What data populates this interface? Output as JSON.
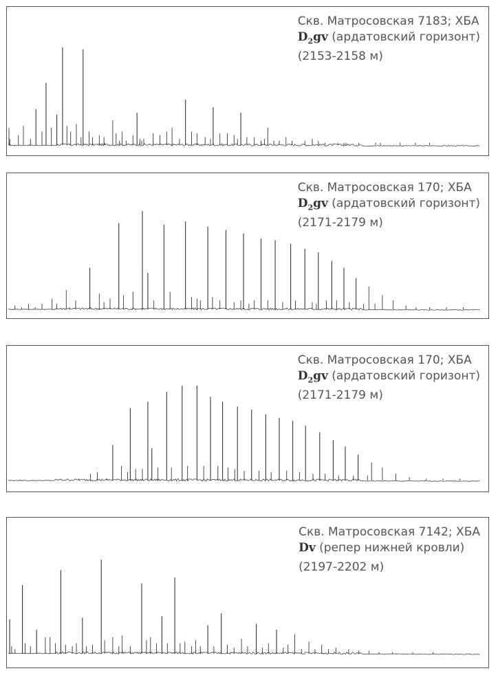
{
  "chart_data": [
    {
      "type": "line",
      "well": "Скв. Матросовская 7183; ХБА",
      "stratum": "D",
      "stratum_sub": "2",
      "stratum_suffix": "gv",
      "horizon": "(ардатовский горизонт)",
      "depth": "(2153-2158 м)",
      "peaks": [
        [
          0.1,
          0.5
        ],
        [
          0.15,
          0.1
        ],
        [
          0.22,
          0.2
        ],
        [
          0.38,
          0.05
        ],
        [
          0.98,
          0.01
        ],
        [
          1.5,
          0.3
        ],
        [
          2.25,
          0.55
        ],
        [
          3.3,
          0.2
        ],
        [
          3.1,
          0.05
        ],
        [
          4.1,
          1.0
        ],
        [
          5.0,
          0.4
        ],
        [
          5.6,
          1.7
        ],
        [
          6.4,
          0.5
        ],
        [
          7.2,
          0.85
        ],
        [
          8.05,
          2.65
        ],
        [
          8.7,
          0.55
        ],
        [
          9.25,
          0.4
        ],
        [
          10.1,
          0.6
        ],
        [
          10.8,
          0.25
        ],
        [
          11.1,
          2.6
        ],
        [
          12.0,
          0.4
        ],
        [
          12.5,
          0.25
        ],
        [
          13.5,
          0.3
        ],
        [
          14.2,
          0.25
        ],
        [
          14.3,
          0.1
        ],
        [
          15.5,
          0.7
        ],
        [
          16.0,
          0.35
        ],
        [
          16.5,
          0.15
        ],
        [
          16.9,
          0.4
        ],
        [
          17.5,
          0.15
        ],
        [
          18.5,
          0.3
        ],
        [
          19.1,
          0.9
        ],
        [
          19.55,
          0.2
        ],
        [
          19.8,
          0.15
        ],
        [
          20.1,
          0.2
        ],
        [
          21.5,
          0.35
        ],
        [
          22.5,
          0.3
        ],
        [
          23.5,
          0.4
        ],
        [
          24.3,
          0.5
        ],
        [
          25.4,
          0.2
        ],
        [
          26.3,
          1.25
        ],
        [
          27.2,
          0.4
        ],
        [
          28.0,
          0.35
        ],
        [
          29.2,
          0.25
        ],
        [
          30.0,
          0.2
        ],
        [
          30.4,
          1.05
        ],
        [
          31.4,
          0.35
        ],
        [
          32.5,
          0.35
        ],
        [
          33.5,
          0.3
        ],
        [
          34.0,
          0.2
        ],
        [
          34.5,
          0.9
        ],
        [
          35.4,
          0.25
        ],
        [
          36.5,
          0.25
        ],
        [
          37.5,
          0.15
        ],
        [
          38.0,
          0.2
        ],
        [
          38.5,
          0.5
        ],
        [
          39.4,
          0.15
        ],
        [
          40.2,
          0.15
        ],
        [
          41.2,
          0.25
        ],
        [
          42.1,
          0.15
        ],
        [
          44.0,
          0.15
        ],
        [
          45.1,
          0.2
        ],
        [
          46.0,
          0.15
        ],
        [
          47.0,
          0.1
        ],
        [
          48.9,
          0.1
        ],
        [
          49.8,
          0.1
        ],
        [
          50.1,
          0.1
        ],
        [
          52.0,
          0.1
        ],
        [
          54.5,
          0.1
        ],
        [
          55.2,
          0.1
        ],
        [
          58.1,
          0.1
        ],
        [
          60.4,
          0.1
        ],
        [
          62.5,
          0.1
        ],
        [
          65.3,
          0.05
        ],
        [
          67.5,
          0.05
        ]
      ],
      "baseline": 0.1,
      "xlim": [
        0,
        70
      ],
      "ylim": [
        0,
        3
      ]
    },
    {
      "type": "line",
      "well": "Скв. Матросовская 170; ХБА",
      "stratum": "D",
      "stratum_sub": "2",
      "stratum_suffix": "gv",
      "horizon": "(ардатовский горизонт)",
      "depth": "(2171-2179 м)",
      "peaks": [
        [
          1.0,
          0.15
        ],
        [
          2.0,
          0.1
        ],
        [
          3.0,
          0.2
        ],
        [
          4.0,
          0.1
        ],
        [
          5.0,
          0.2
        ],
        [
          6.5,
          0.35
        ],
        [
          7.2,
          0.2
        ],
        [
          8.6,
          0.6
        ],
        [
          9.1,
          0.1
        ],
        [
          10.0,
          0.3
        ],
        [
          12.1,
          1.25
        ],
        [
          13.5,
          0.5
        ],
        [
          14.2,
          0.25
        ],
        [
          15.1,
          0.35
        ],
        [
          16.4,
          2.55
        ],
        [
          17.1,
          0.45
        ],
        [
          18.5,
          0.55
        ],
        [
          19.9,
          2.9
        ],
        [
          20.7,
          1.1
        ],
        [
          21.6,
          0.3
        ],
        [
          23.1,
          2.5
        ],
        [
          24.0,
          0.55
        ],
        [
          26.3,
          2.6
        ],
        [
          27.2,
          0.4
        ],
        [
          28.0,
          0.35
        ],
        [
          28.5,
          0.3
        ],
        [
          29.6,
          2.45
        ],
        [
          30.3,
          0.4
        ],
        [
          31.4,
          0.3
        ],
        [
          32.3,
          2.35
        ],
        [
          33.5,
          0.25
        ],
        [
          34.5,
          0.3
        ],
        [
          34.9,
          2.25
        ],
        [
          35.7,
          0.2
        ],
        [
          36.5,
          0.3
        ],
        [
          37.5,
          2.1
        ],
        [
          38.5,
          0.3
        ],
        [
          39.6,
          2.05
        ],
        [
          40.7,
          0.25
        ],
        [
          41.9,
          1.95
        ],
        [
          42.6,
          0.3
        ],
        [
          44.0,
          1.8
        ],
        [
          45.1,
          0.25
        ],
        [
          45.7,
          0.2
        ],
        [
          46.0,
          1.7
        ],
        [
          47.2,
          0.3
        ],
        [
          48.0,
          1.45
        ],
        [
          48.7,
          0.3
        ],
        [
          49.8,
          1.25
        ],
        [
          50.6,
          0.25
        ],
        [
          51.6,
          0.95
        ],
        [
          52.7,
          0.2
        ],
        [
          53.5,
          0.7
        ],
        [
          54.4,
          0.2
        ],
        [
          55.5,
          0.45
        ],
        [
          57.1,
          0.3
        ],
        [
          59.0,
          0.15
        ],
        [
          60.5,
          0.1
        ],
        [
          62.5,
          0.1
        ],
        [
          65.0,
          0.1
        ],
        [
          67.5,
          0.1
        ],
        [
          69.0,
          0.05
        ]
      ],
      "baseline": 0.15,
      "xlim": [
        0,
        70
      ],
      "ylim": [
        0,
        3
      ]
    },
    {
      "type": "line",
      "well": "Скв. Матросовская 170; ХБА",
      "stratum": "D",
      "stratum_sub": "2",
      "stratum_suffix": "gv",
      "horizon": "(ардатовский горизонт)",
      "depth": "(2171-2179 м)",
      "peaks": [
        [
          4.0,
          0.05
        ],
        [
          7.0,
          0.05
        ],
        [
          9.5,
          0.05
        ],
        [
          10.5,
          0.1
        ],
        [
          11.0,
          0.05
        ],
        [
          12.2,
          0.25
        ],
        [
          13.2,
          0.3
        ],
        [
          14.6,
          0.1
        ],
        [
          15.5,
          1.15
        ],
        [
          16.8,
          0.5
        ],
        [
          17.7,
          0.3
        ],
        [
          18.1,
          2.3
        ],
        [
          18.9,
          0.4
        ],
        [
          19.9,
          0.4
        ],
        [
          20.7,
          2.5
        ],
        [
          21.3,
          1.05
        ],
        [
          22.2,
          0.45
        ],
        [
          23.5,
          2.8
        ],
        [
          24.2,
          0.45
        ],
        [
          25.8,
          3.0
        ],
        [
          26.6,
          0.5
        ],
        [
          28.0,
          3.0
        ],
        [
          29.0,
          0.5
        ],
        [
          30.0,
          2.65
        ],
        [
          31.1,
          0.5
        ],
        [
          31.8,
          2.5
        ],
        [
          32.6,
          0.45
        ],
        [
          33.6,
          0.4
        ],
        [
          34.0,
          2.35
        ],
        [
          35.0,
          0.35
        ],
        [
          36.1,
          2.25
        ],
        [
          37.2,
          0.35
        ],
        [
          38.2,
          2.1
        ],
        [
          39.0,
          0.3
        ],
        [
          40.2,
          2.0
        ],
        [
          41.3,
          0.35
        ],
        [
          42.2,
          1.9
        ],
        [
          43.2,
          0.3
        ],
        [
          44.1,
          1.75
        ],
        [
          45.2,
          0.25
        ],
        [
          46.2,
          1.55
        ],
        [
          47.0,
          0.25
        ],
        [
          48.2,
          1.3
        ],
        [
          49.0,
          0.2
        ],
        [
          50.0,
          1.1
        ],
        [
          51.2,
          0.2
        ],
        [
          51.9,
          0.85
        ],
        [
          53.3,
          0.2
        ],
        [
          53.9,
          0.6
        ],
        [
          55.5,
          0.45
        ],
        [
          57.5,
          0.25
        ],
        [
          59.5,
          0.15
        ],
        [
          62.0,
          0.1
        ],
        [
          64.5,
          0.1
        ],
        [
          67.0,
          0.1
        ]
      ],
      "baseline": 0.15,
      "xlim": [
        0,
        70
      ],
      "ylim": [
        0,
        3
      ]
    },
    {
      "type": "line",
      "well": "Скв. Матросовская 7142; ХБА",
      "stratum": "Dv",
      "stratum_sub": "",
      "stratum_suffix": "",
      "horizon": "(репер нижней кровли)",
      "depth": "(2197-2202 м)",
      "peaks": [
        [
          0.2,
          1.2
        ],
        [
          0.5,
          0.3
        ],
        [
          1.0,
          0.2
        ],
        [
          2.1,
          2.35
        ],
        [
          2.5,
          0.4
        ],
        [
          3.3,
          0.3
        ],
        [
          4.2,
          0.85
        ],
        [
          5.5,
          0.6
        ],
        [
          6.2,
          0.6
        ],
        [
          7.0,
          0.4
        ],
        [
          7.8,
          2.85
        ],
        [
          8.5,
          0.35
        ],
        [
          9.5,
          0.3
        ],
        [
          10.1,
          0.4
        ],
        [
          11.0,
          1.25
        ],
        [
          11.6,
          0.3
        ],
        [
          12.5,
          0.35
        ],
        [
          13.8,
          3.2
        ],
        [
          14.3,
          0.5
        ],
        [
          15.5,
          0.6
        ],
        [
          16.4,
          0.3
        ],
        [
          16.9,
          0.65
        ],
        [
          18.1,
          0.3
        ],
        [
          19.8,
          2.4
        ],
        [
          20.5,
          0.5
        ],
        [
          21.1,
          0.6
        ],
        [
          22.0,
          0.4
        ],
        [
          22.8,
          1.3
        ],
        [
          23.6,
          0.4
        ],
        [
          24.7,
          2.6
        ],
        [
          25.5,
          0.4
        ],
        [
          26.2,
          0.45
        ],
        [
          27.2,
          0.3
        ],
        [
          27.8,
          0.5
        ],
        [
          28.5,
          0.3
        ],
        [
          29.6,
          1.0
        ],
        [
          30.5,
          0.3
        ],
        [
          31.6,
          1.4
        ],
        [
          32.5,
          0.35
        ],
        [
          33.5,
          0.25
        ],
        [
          34.6,
          0.55
        ],
        [
          35.5,
          0.3
        ],
        [
          36.8,
          1.05
        ],
        [
          37.7,
          0.25
        ],
        [
          38.6,
          0.4
        ],
        [
          39.8,
          0.85
        ],
        [
          40.8,
          0.25
        ],
        [
          41.5,
          0.35
        ],
        [
          42.5,
          0.7
        ],
        [
          43.5,
          0.2
        ],
        [
          44.6,
          0.45
        ],
        [
          45.5,
          0.2
        ],
        [
          46.5,
          0.35
        ],
        [
          47.5,
          0.2
        ],
        [
          48.6,
          0.25
        ],
        [
          50.5,
          0.2
        ],
        [
          52.0,
          0.15
        ],
        [
          53.5,
          0.15
        ],
        [
          55.0,
          0.1
        ],
        [
          57.0,
          0.1
        ],
        [
          60.0,
          0.1
        ],
        [
          63.0,
          0.1
        ],
        [
          66.0,
          0.05
        ]
      ],
      "baseline": 0.2,
      "xlim": [
        0,
        70
      ],
      "ylim": [
        0,
        3.5
      ]
    }
  ]
}
